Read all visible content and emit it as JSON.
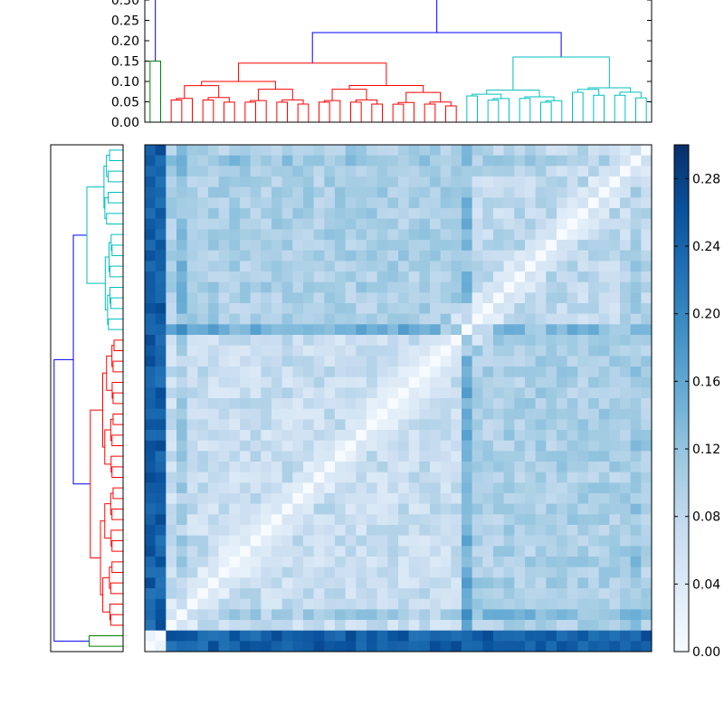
{
  "chart_data": {
    "type": "heatmap",
    "title": "",
    "description_kind": "clustered distance heatmap with dendrograms",
    "size": 48,
    "top_dendrogram": {
      "ylim": [
        0.0,
        0.3
      ],
      "yticks": [
        "0.00",
        "0.05",
        "0.10",
        "0.15",
        "0.20",
        "0.25",
        "0.30"
      ],
      "root_height": 0.305,
      "colors": {
        "root": "#0000ff",
        "green": "#008000",
        "red": "#ff0000",
        "cyan": "#00bfbf"
      },
      "clusters": [
        {
          "name": "green",
          "leaves": 2,
          "height": 0.15
        },
        {
          "name": "red",
          "leaves": 28,
          "height": 0.145
        },
        {
          "name": "cyan",
          "leaves": 18,
          "height": 0.16
        }
      ],
      "inner_joins": [
        {
          "between": "red+cyan",
          "height": 0.22
        },
        {
          "between": "green+rest",
          "height": 0.305
        }
      ]
    },
    "colorbar": {
      "range": [
        0.0,
        0.3
      ],
      "ticks": [
        "0.00",
        "0.04",
        "0.08",
        "0.12",
        "0.16",
        "0.20",
        "0.24",
        "0.28"
      ],
      "colormap": "Blues",
      "stops": [
        "#f7fbff",
        "#deebf7",
        "#c6dbef",
        "#9ecae1",
        "#6baed6",
        "#4292c6",
        "#2171b5",
        "#08519c",
        "#08306b"
      ]
    },
    "matrix_notes": {
      "diagonal": 0.0,
      "high_rows": [
        0,
        1
      ],
      "high_cols": [
        0,
        1
      ],
      "cluster_blocks": [
        {
          "start": 2,
          "end": 29,
          "typical": 0.07
        },
        {
          "start": 30,
          "end": 47,
          "typical": 0.08
        }
      ],
      "between_clusters": 0.1,
      "outlier_row_value": 0.22,
      "max_value": 0.3
    }
  }
}
